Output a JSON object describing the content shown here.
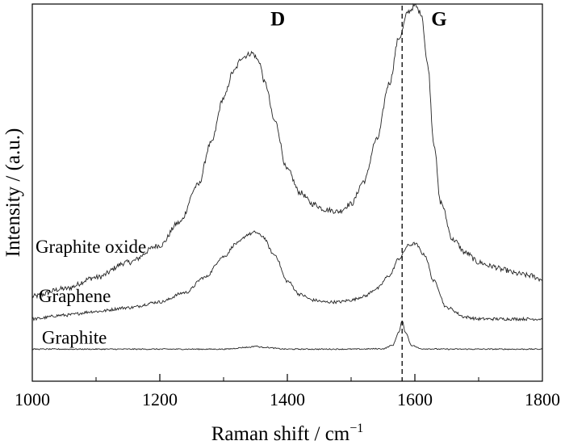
{
  "chart_data": {
    "type": "line",
    "title": "",
    "xlabel": "Raman shift / cm",
    "xlabel_sup": "−1",
    "ylabel": "Intensity / (a.u.)",
    "xlim": [
      1000,
      1800
    ],
    "ylim": [
      0,
      100
    ],
    "x_ticks": [
      1000,
      1200,
      1400,
      1600,
      1800
    ],
    "x_tick_labels": [
      "1000",
      "1200",
      "1400",
      "1600",
      "1800"
    ],
    "x_minor_ticks": [
      1100,
      1300,
      1500,
      1700
    ],
    "y_ticks_shown": false,
    "grid": false,
    "legend": "none",
    "reference_line": {
      "x": 1580,
      "style": "dashed"
    },
    "peak_labels": [
      {
        "text": "D",
        "x": 1385,
        "y": 96
      },
      {
        "text": "G",
        "x": 1638,
        "y": 96
      }
    ],
    "series": [
      {
        "name": "Graphite oxide",
        "label_x": 1005,
        "label_y": 34,
        "x": [
          1000,
          1050,
          1100,
          1150,
          1200,
          1230,
          1260,
          1280,
          1300,
          1315,
          1330,
          1345,
          1355,
          1365,
          1380,
          1400,
          1420,
          1440,
          1460,
          1480,
          1500,
          1520,
          1540,
          1560,
          1575,
          1590,
          1600,
          1610,
          1620,
          1630,
          1640,
          1660,
          1680,
          1700,
          1720,
          1740,
          1760,
          1780,
          1800
        ],
        "y": [
          22.5,
          24.5,
          27.5,
          31.5,
          36,
          42,
          52,
          63,
          75,
          82,
          86,
          87,
          85,
          79,
          69,
          56,
          50,
          47,
          45.5,
          45,
          47,
          53,
          64,
          79,
          91,
          98,
          99.5,
          97.5,
          84,
          63,
          47.5,
          37.5,
          34,
          31.5,
          30.5,
          29.5,
          28.5,
          28,
          27
        ],
        "noise": 0.7
      },
      {
        "name": "Graphene",
        "label_x": 1010,
        "label_y": 21,
        "x": [
          1000,
          1050,
          1100,
          1150,
          1200,
          1240,
          1270,
          1300,
          1320,
          1340,
          1350,
          1360,
          1380,
          1400,
          1420,
          1440,
          1460,
          1480,
          1500,
          1520,
          1540,
          1560,
          1575,
          1590,
          1600,
          1615,
          1630,
          1650,
          1680,
          1700,
          1750,
          1800
        ],
        "y": [
          16.5,
          17.5,
          18.5,
          19.5,
          21,
          23.5,
          27.5,
          33,
          36.5,
          39,
          39.5,
          38.5,
          33.5,
          26.5,
          23,
          21.5,
          21,
          21,
          21.5,
          22.5,
          24.5,
          28,
          32.5,
          36,
          36.5,
          33.5,
          26.5,
          19.5,
          17,
          16.5,
          16.5,
          16.5
        ],
        "noise": 0.4
      },
      {
        "name": "Graphite",
        "label_x": 1015,
        "label_y": 10,
        "x": [
          1000,
          1100,
          1200,
          1300,
          1340,
          1350,
          1360,
          1400,
          1500,
          1550,
          1565,
          1575,
          1580,
          1585,
          1595,
          1610,
          1650,
          1700,
          1800
        ],
        "y": [
          8.5,
          8.5,
          8.5,
          8.5,
          9,
          9.3,
          9,
          8.5,
          8.5,
          8.6,
          9.5,
          13,
          16,
          13,
          9.5,
          8.6,
          8.5,
          8.5,
          8.5
        ],
        "noise": 0.15
      }
    ]
  }
}
